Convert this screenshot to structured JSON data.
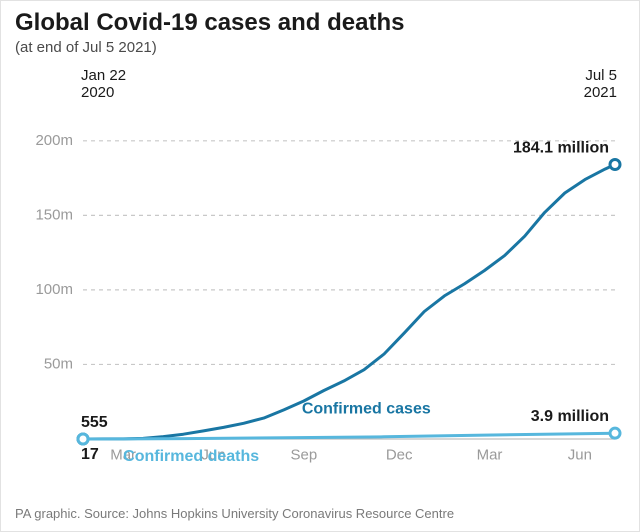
{
  "title": "Global Covid-19 cases and deaths",
  "subtitle": "(at end of Jul 5 2021)",
  "date_start_line1": "Jan 22",
  "date_start_line2": "2020",
  "date_end_line1": "Jul 5",
  "date_end_line2": "2021",
  "footer": "PA graphic. Source: Johns Hopkins University Coronavirus Resource Centre",
  "chart": {
    "type": "line",
    "background_color": "#ffffff",
    "grid_color": "#c8c8c8",
    "grid_dash": "4 4",
    "axis_color": "#bfbfbf",
    "y": {
      "min": 0,
      "max": 220,
      "ticks": [
        50,
        100,
        150,
        200
      ],
      "tick_labels": [
        "50m",
        "100m",
        "150m",
        "200m"
      ]
    },
    "x": {
      "min": 0,
      "max": 530,
      "ticks": [
        40,
        130,
        220,
        315,
        405,
        495
      ],
      "tick_labels": [
        "Mar",
        "Jun",
        "Sep",
        "Dec",
        "Mar",
        "Jun"
      ]
    },
    "series": [
      {
        "name": "Confirmed cases",
        "color": "#1976a3",
        "line_width": 3,
        "marker_start": true,
        "marker_end": true,
        "marker_radius": 5,
        "marker_stroke_width": 3,
        "start_value": 555,
        "start_label": "555",
        "end_value": 184.1,
        "end_label": "184.1 million",
        "label_inline": "Confirmed cases",
        "data": [
          [
            0,
            0.0006
          ],
          [
            20,
            0.07
          ],
          [
            40,
            0.1
          ],
          [
            60,
            0.4
          ],
          [
            80,
            1.6
          ],
          [
            100,
            3.2
          ],
          [
            120,
            5.4
          ],
          [
            140,
            7.8
          ],
          [
            160,
            10.5
          ],
          [
            180,
            14.0
          ],
          [
            200,
            19.5
          ],
          [
            220,
            25.5
          ],
          [
            240,
            32.5
          ],
          [
            260,
            39.0
          ],
          [
            280,
            46.5
          ],
          [
            300,
            57.0
          ],
          [
            320,
            71.0
          ],
          [
            340,
            85.5
          ],
          [
            360,
            96.0
          ],
          [
            380,
            104.0
          ],
          [
            400,
            113.0
          ],
          [
            420,
            123.0
          ],
          [
            440,
            136.0
          ],
          [
            460,
            152.0
          ],
          [
            480,
            165.0
          ],
          [
            500,
            174.0
          ],
          [
            520,
            181.0
          ],
          [
            530,
            184.1
          ]
        ]
      },
      {
        "name": "Confirmed deaths",
        "color": "#57b7dd",
        "line_width": 3,
        "marker_start": true,
        "marker_end": true,
        "marker_radius": 5,
        "marker_stroke_width": 3,
        "start_value": 17,
        "start_label": "17",
        "end_value": 3.9,
        "end_label": "3.9 million",
        "label_inline": "Confirmed deaths",
        "data": [
          [
            0,
            2e-05
          ],
          [
            100,
            0.25
          ],
          [
            200,
            0.8
          ],
          [
            300,
            1.5
          ],
          [
            400,
            2.6
          ],
          [
            530,
            3.9
          ]
        ]
      }
    ]
  }
}
